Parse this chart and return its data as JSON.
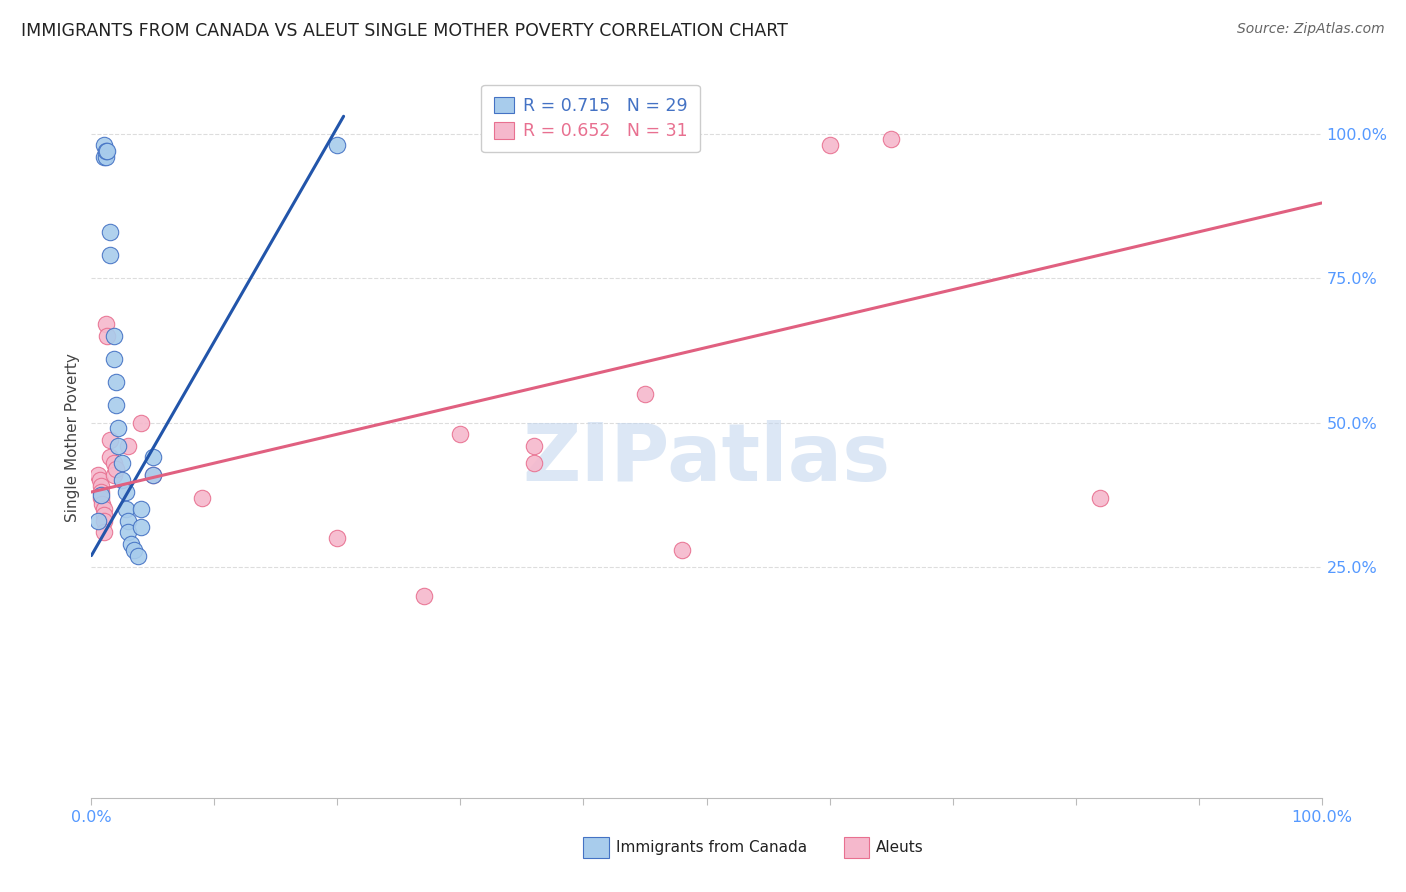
{
  "title": "IMMIGRANTS FROM CANADA VS ALEUT SINGLE MOTHER POVERTY CORRELATION CHART",
  "source": "Source: ZipAtlas.com",
  "ylabel": "Single Mother Poverty",
  "watermark": "ZIPatlas",
  "blue_r": "0.715",
  "blue_n": "29",
  "pink_r": "0.652",
  "pink_n": "31",
  "xlim": [
    0.0,
    1.0
  ],
  "ylim": [
    -0.15,
    1.1
  ],
  "ytick_positions": [
    0.25,
    0.5,
    0.75,
    1.0
  ],
  "ytick_labels": [
    "25.0%",
    "50.0%",
    "75.0%",
    "100.0%"
  ],
  "blue_fill": "#A8CCEC",
  "blue_edge": "#4472C4",
  "pink_fill": "#F5B8CC",
  "pink_edge": "#E87090",
  "blue_line_color": "#2255AA",
  "pink_line_color": "#E06080",
  "grid_color": "#DDDDDD",
  "tick_color": "#5599FF",
  "blue_dots": [
    [
      0.005,
      0.33
    ],
    [
      0.008,
      0.375
    ],
    [
      0.01,
      0.96
    ],
    [
      0.01,
      0.98
    ],
    [
      0.012,
      0.96
    ],
    [
      0.012,
      0.97
    ],
    [
      0.013,
      0.97
    ],
    [
      0.015,
      0.83
    ],
    [
      0.015,
      0.79
    ],
    [
      0.018,
      0.65
    ],
    [
      0.018,
      0.61
    ],
    [
      0.02,
      0.57
    ],
    [
      0.02,
      0.53
    ],
    [
      0.022,
      0.49
    ],
    [
      0.022,
      0.46
    ],
    [
      0.025,
      0.43
    ],
    [
      0.025,
      0.4
    ],
    [
      0.028,
      0.38
    ],
    [
      0.028,
      0.35
    ],
    [
      0.03,
      0.33
    ],
    [
      0.03,
      0.31
    ],
    [
      0.032,
      0.29
    ],
    [
      0.035,
      0.28
    ],
    [
      0.038,
      0.27
    ],
    [
      0.04,
      0.35
    ],
    [
      0.04,
      0.32
    ],
    [
      0.05,
      0.44
    ],
    [
      0.05,
      0.41
    ],
    [
      0.2,
      0.98
    ]
  ],
  "pink_dots": [
    [
      0.005,
      0.41
    ],
    [
      0.007,
      0.4
    ],
    [
      0.008,
      0.39
    ],
    [
      0.008,
      0.38
    ],
    [
      0.008,
      0.37
    ],
    [
      0.009,
      0.36
    ],
    [
      0.01,
      0.35
    ],
    [
      0.01,
      0.34
    ],
    [
      0.01,
      0.33
    ],
    [
      0.01,
      0.31
    ],
    [
      0.012,
      0.67
    ],
    [
      0.013,
      0.65
    ],
    [
      0.015,
      0.47
    ],
    [
      0.015,
      0.44
    ],
    [
      0.018,
      0.43
    ],
    [
      0.018,
      0.41
    ],
    [
      0.02,
      0.42
    ],
    [
      0.03,
      0.46
    ],
    [
      0.04,
      0.5
    ],
    [
      0.05,
      0.41
    ],
    [
      0.09,
      0.37
    ],
    [
      0.2,
      0.3
    ],
    [
      0.27,
      0.2
    ],
    [
      0.3,
      0.48
    ],
    [
      0.36,
      0.46
    ],
    [
      0.36,
      0.43
    ],
    [
      0.45,
      0.55
    ],
    [
      0.48,
      0.28
    ],
    [
      0.6,
      0.98
    ],
    [
      0.65,
      0.99
    ],
    [
      0.82,
      0.37
    ]
  ],
  "blue_line_x": [
    0.0,
    0.205
  ],
  "blue_line_y": [
    0.27,
    1.03
  ],
  "pink_line_x": [
    0.0,
    1.0
  ],
  "pink_line_y": [
    0.38,
    0.88
  ]
}
